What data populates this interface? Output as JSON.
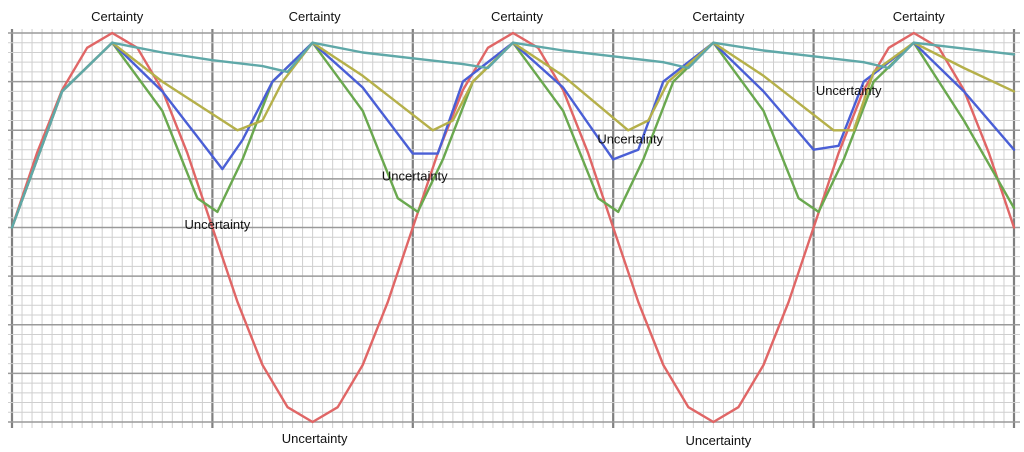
{
  "chart_data": {
    "type": "line",
    "title": "",
    "xlabel": "",
    "ylabel": "",
    "xlim": [
      0,
      10
    ],
    "ylim": [
      -1,
      1
    ],
    "grid": true,
    "legend": "none",
    "series": [
      {
        "color": "#e06666",
        "x": [
          0.0,
          0.25,
          0.5,
          0.75,
          1.0,
          1.25,
          1.5,
          1.75,
          2.0,
          2.25,
          2.5,
          2.75,
          3.0,
          3.25,
          3.5,
          3.75,
          4.0,
          4.25,
          4.5,
          4.75,
          5.0,
          5.25,
          5.5,
          5.75,
          6.0,
          6.25,
          6.5,
          6.75,
          7.0,
          7.25,
          7.5,
          7.75,
          8.0,
          8.25,
          8.5,
          8.75,
          9.0,
          9.25,
          9.5,
          9.75,
          10.0
        ],
        "y": [
          0.0,
          0.383,
          0.707,
          0.924,
          1.0,
          0.924,
          0.707,
          0.383,
          0.0,
          -0.383,
          -0.707,
          -0.924,
          -1.0,
          -0.924,
          -0.707,
          -0.383,
          0.0,
          0.383,
          0.707,
          0.924,
          1.0,
          0.924,
          0.707,
          0.383,
          0.0,
          -0.383,
          -0.707,
          -0.924,
          -1.0,
          -0.924,
          -0.707,
          -0.383,
          0.0,
          0.383,
          0.707,
          0.924,
          1.0,
          0.924,
          0.707,
          0.383,
          0.0
        ]
      },
      {
        "color": "#6aa84f",
        "x": [
          0.0,
          0.5,
          1.0,
          1.5,
          1.85,
          2.05,
          2.3,
          2.6,
          3.0,
          3.5,
          3.85,
          4.05,
          4.3,
          4.6,
          5.0,
          5.5,
          5.85,
          6.05,
          6.3,
          6.6,
          7.0,
          7.5,
          7.85,
          8.05,
          8.3,
          8.6,
          9.0,
          9.5,
          10.0
        ],
        "y": [
          0.0,
          0.7,
          0.95,
          0.6,
          0.15,
          0.08,
          0.35,
          0.75,
          0.95,
          0.6,
          0.15,
          0.08,
          0.35,
          0.75,
          0.95,
          0.6,
          0.15,
          0.08,
          0.35,
          0.75,
          0.95,
          0.6,
          0.15,
          0.08,
          0.35,
          0.75,
          0.95,
          0.55,
          0.1
        ]
      },
      {
        "color": "#4a5fd6",
        "x": [
          0.0,
          0.5,
          1.0,
          1.5,
          2.1,
          2.3,
          2.6,
          3.0,
          3.5,
          4.0,
          4.25,
          4.5,
          5.0,
          5.5,
          6.0,
          6.25,
          6.5,
          7.0,
          7.5,
          8.0,
          8.25,
          8.5,
          9.0,
          9.5,
          10.0
        ],
        "y": [
          0.0,
          0.7,
          0.95,
          0.7,
          0.3,
          0.45,
          0.75,
          0.95,
          0.72,
          0.38,
          0.38,
          0.75,
          0.95,
          0.72,
          0.35,
          0.4,
          0.75,
          0.95,
          0.7,
          0.4,
          0.42,
          0.75,
          0.95,
          0.7,
          0.4
        ]
      },
      {
        "color": "#b5b04a",
        "x": [
          0.0,
          0.5,
          1.0,
          1.5,
          2.25,
          2.5,
          2.7,
          3.0,
          3.5,
          4.2,
          4.4,
          4.6,
          5.0,
          5.5,
          6.15,
          6.35,
          6.55,
          7.0,
          7.5,
          8.2,
          8.4,
          8.6,
          9.0,
          9.5,
          10.0
        ],
        "y": [
          0.0,
          0.7,
          0.95,
          0.75,
          0.5,
          0.55,
          0.75,
          0.95,
          0.78,
          0.5,
          0.55,
          0.75,
          0.95,
          0.78,
          0.5,
          0.55,
          0.75,
          0.95,
          0.78,
          0.5,
          0.5,
          0.8,
          0.95,
          0.82,
          0.7
        ]
      },
      {
        "color": "#5fa8a8",
        "x": [
          0.0,
          0.5,
          1.0,
          1.5,
          2.0,
          2.5,
          2.75,
          3.0,
          3.5,
          4.0,
          4.5,
          4.75,
          5.0,
          5.5,
          6.0,
          6.5,
          6.75,
          7.0,
          7.5,
          8.0,
          8.5,
          8.75,
          9.0,
          9.5,
          10.0
        ],
        "y": [
          0.0,
          0.7,
          0.95,
          0.9,
          0.86,
          0.83,
          0.8,
          0.95,
          0.9,
          0.87,
          0.84,
          0.82,
          0.95,
          0.91,
          0.88,
          0.85,
          0.82,
          0.95,
          0.91,
          0.88,
          0.85,
          0.82,
          0.95,
          0.92,
          0.89
        ]
      }
    ],
    "annotations": [
      {
        "text": "Certainty",
        "x": 1.05,
        "y": 1.08
      },
      {
        "text": "Certainty",
        "x": 3.02,
        "y": 1.08
      },
      {
        "text": "Certainty",
        "x": 5.04,
        "y": 1.08
      },
      {
        "text": "Certainty",
        "x": 7.05,
        "y": 1.08
      },
      {
        "text": "Certainty",
        "x": 9.05,
        "y": 1.08
      },
      {
        "text": "Uncertainty",
        "x": 2.05,
        "y": 0.01
      },
      {
        "text": "Uncertainty",
        "x": 4.02,
        "y": 0.26
      },
      {
        "text": "Uncertainty",
        "x": 6.17,
        "y": 0.45
      },
      {
        "text": "Uncertainty",
        "x": 8.35,
        "y": 0.7
      },
      {
        "text": "Uncertainty",
        "x": 3.02,
        "y": -1.09
      },
      {
        "text": "Uncertainty",
        "x": 7.05,
        "y": -1.1
      }
    ]
  }
}
